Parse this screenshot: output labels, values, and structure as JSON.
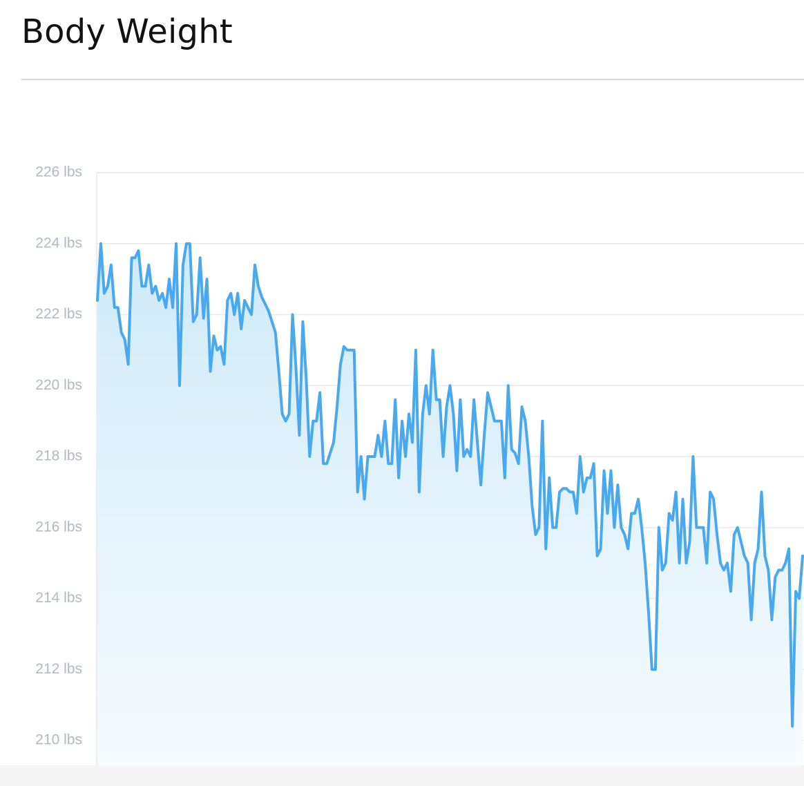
{
  "title": "Body Weight",
  "colors": {
    "line": "#4aa8ee",
    "fill_top": "#cfeaf9",
    "fill_bottom": "#f6fbfe",
    "grid": "#e6e9ee",
    "tick_text": "#b2b9c1"
  },
  "chart_data": {
    "type": "area",
    "title": "",
    "xlabel": "",
    "ylabel": "",
    "unit": "lbs",
    "ylim": [
      209.3,
      226
    ],
    "yticks": [
      226,
      224,
      222,
      220,
      218,
      216,
      214,
      212,
      210
    ],
    "ytick_labels": [
      "226 lbs",
      "224 lbs",
      "222 lbs",
      "220 lbs",
      "218 lbs",
      "216 lbs",
      "214 lbs",
      "212 lbs",
      "210 lbs"
    ],
    "grid": true,
    "legend": "none",
    "series": [
      {
        "values": [
          222.4,
          224.0,
          222.6,
          222.8,
          223.4,
          222.2,
          222.2,
          221.5,
          221.3,
          220.6,
          223.6,
          223.6,
          223.8,
          222.8,
          222.8,
          223.4,
          222.6,
          222.8,
          222.4,
          222.6,
          222.2,
          223.0,
          222.2,
          224.0,
          220.0,
          223.4,
          224.0,
          224.0,
          221.8,
          222.0,
          223.6,
          221.9,
          223.0,
          220.4,
          221.4,
          221.0,
          221.1,
          220.6,
          222.4,
          222.6,
          222.0,
          222.6,
          221.6,
          222.4,
          222.2,
          222.0,
          223.4,
          222.8,
          222.5,
          222.3,
          222.1,
          221.8,
          221.5,
          220.4,
          219.2,
          219.0,
          219.2,
          222.0,
          220.5,
          218.6,
          221.8,
          220.2,
          218.0,
          219.0,
          219.0,
          219.8,
          217.8,
          217.8,
          218.1,
          218.4,
          219.4,
          220.6,
          221.1,
          221.0,
          221.0,
          221.0,
          217.0,
          218.0,
          216.8,
          218.0,
          218.0,
          218.0,
          218.6,
          218.0,
          219.0,
          217.8,
          217.8,
          219.6,
          217.4,
          219.0,
          218.0,
          219.2,
          218.4,
          221.0,
          217.0,
          219.2,
          220.0,
          219.2,
          221.0,
          219.6,
          219.6,
          218.0,
          219.4,
          220.0,
          219.2,
          217.6,
          219.6,
          218.0,
          218.2,
          218.0,
          219.6,
          218.4,
          217.2,
          218.6,
          219.8,
          219.4,
          219.0,
          219.0,
          219.0,
          217.4,
          220.0,
          218.2,
          218.1,
          217.8,
          219.4,
          219.0,
          218.0,
          216.6,
          215.8,
          216.0,
          219.0,
          215.4,
          217.4,
          216.0,
          216.0,
          217.0,
          217.1,
          217.1,
          217.0,
          217.0,
          216.4,
          218.0,
          217.0,
          217.4,
          217.4,
          217.8,
          215.2,
          215.4,
          217.6,
          216.4,
          217.6,
          216.0,
          217.2,
          216.0,
          215.8,
          215.4,
          216.4,
          216.4,
          216.8,
          216.0,
          215.0,
          213.6,
          212.0,
          212.0,
          216.0,
          214.8,
          215.0,
          216.4,
          216.2,
          217.0,
          215.0,
          216.8,
          215.0,
          215.6,
          218.0,
          216.0,
          216.0,
          216.0,
          215.0,
          217.0,
          216.8,
          215.8,
          215.0,
          214.8,
          215.0,
          214.2,
          215.8,
          216.0,
          215.6,
          215.2,
          215.0,
          213.4,
          215.0,
          215.4,
          217.0,
          215.2,
          214.8,
          213.4,
          214.6,
          214.8,
          214.8,
          215.0,
          215.4,
          210.4,
          214.2,
          214.0,
          215.2
        ]
      }
    ]
  }
}
